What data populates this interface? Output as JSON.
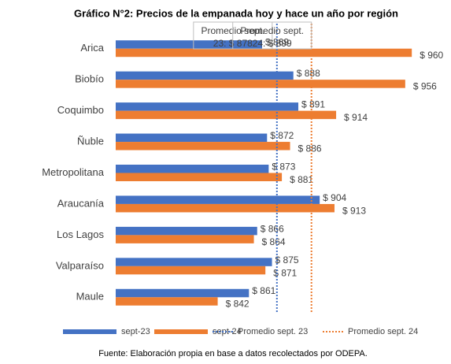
{
  "chart_data": {
    "type": "bar",
    "orientation": "horizontal",
    "title": "Gráfico N°2: Precios de la empanada hoy y hace un año por región",
    "categories": [
      "Arica",
      "Biobío",
      "Coquimbo",
      "Ñuble",
      "Metropolitana",
      "Araucanía",
      "Los Lagos",
      "Valparaíso",
      "Maule"
    ],
    "series": [
      {
        "name": "sept-23",
        "color": "#4472c4",
        "values": [
          869,
          888,
          891,
          872,
          873,
          904,
          866,
          875,
          861
        ],
        "value_labels": [
          "$ 869",
          "$ 888",
          "$ 891",
          "$ 872",
          "$ 873",
          "$ 904",
          "$ 866",
          "$ 875",
          "$ 861"
        ]
      },
      {
        "name": "sept-24",
        "color": "#ed7d31",
        "values": [
          960,
          956,
          914,
          886,
          881,
          913,
          864,
          871,
          842
        ],
        "value_labels": [
          "$ 960",
          "$ 956",
          "$ 914",
          "$ 886",
          "$ 881",
          "$ 913",
          "$ 864",
          "$ 871",
          "$ 842"
        ]
      }
    ],
    "reference_lines": [
      {
        "name": "Promedio sept. 23",
        "value": 878,
        "color": "#4472c4",
        "label_lines": [
          "Promedio sept.",
          "23: $ 878"
        ]
      },
      {
        "name": "Promedio sept. 24",
        "value": 899,
        "color": "#ed7d31",
        "label_lines": [
          "Promedio sept.",
          "24: $ 899"
        ]
      }
    ],
    "xlim": [
      780,
      980
    ],
    "source": "Fuente: Elaboración propia en base a datos recolectados por ODEPA."
  }
}
